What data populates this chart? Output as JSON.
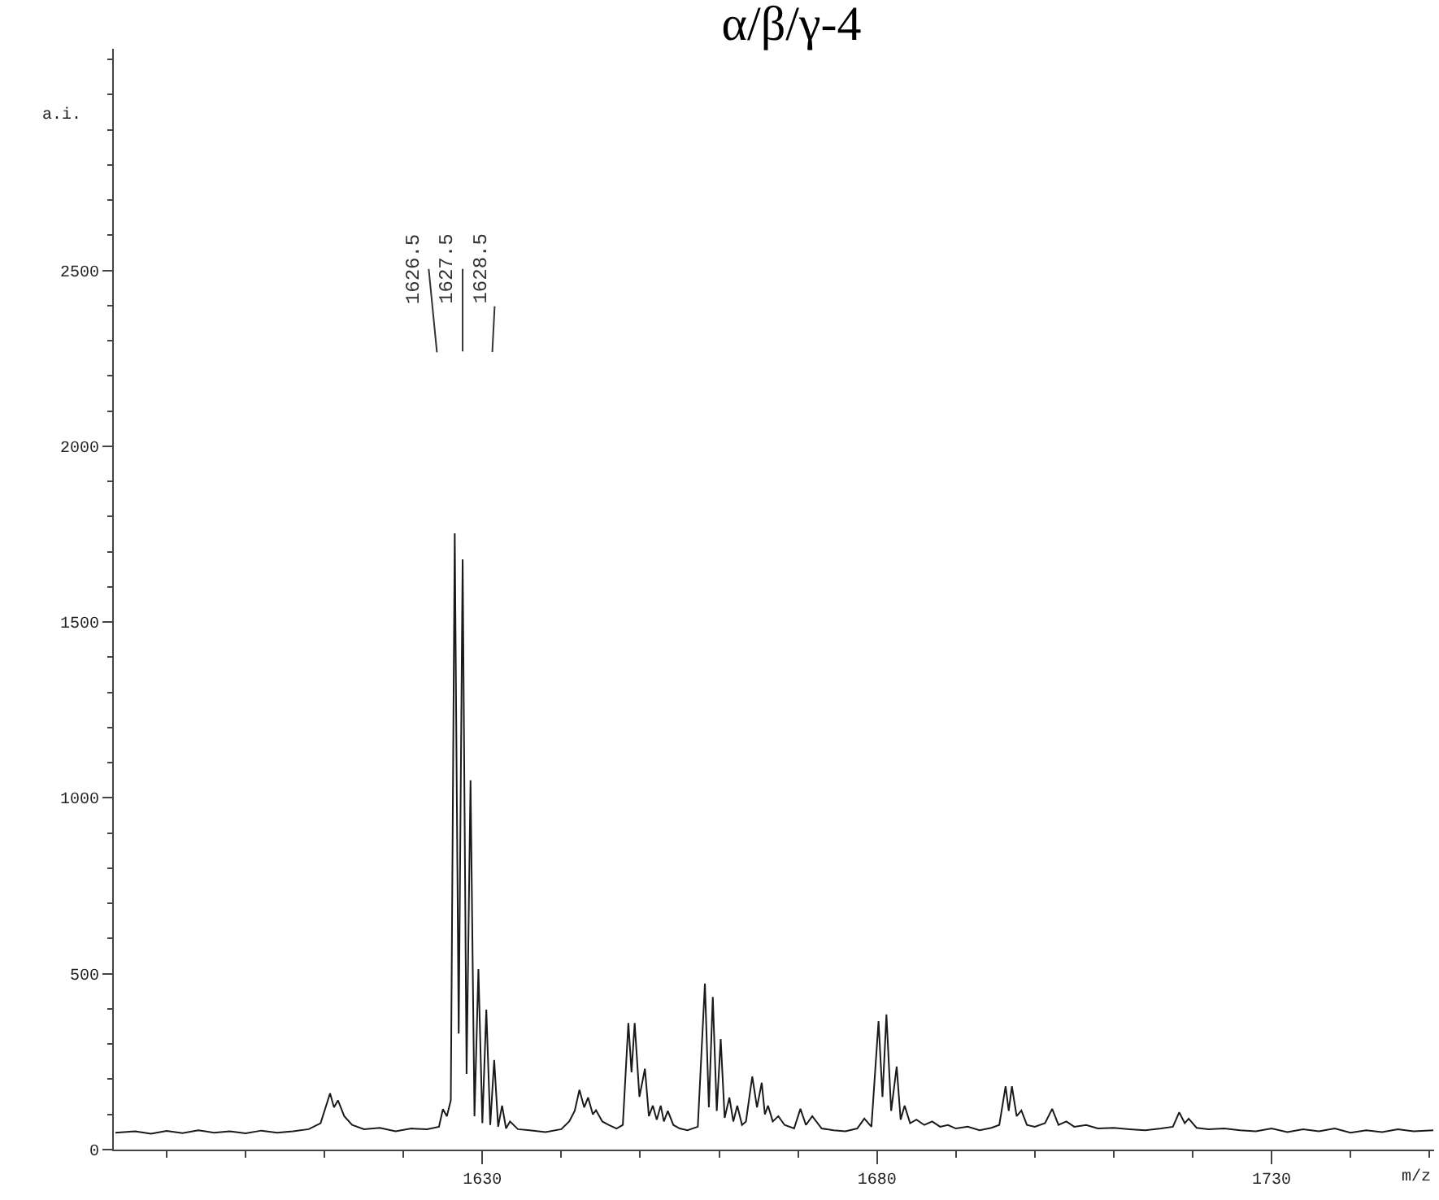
{
  "chart_data": {
    "type": "line",
    "title": "α/β/γ-4",
    "xlabel": "m/z",
    "ylabel": "a.i.",
    "x": [
      1583.5,
      1586,
      1588,
      1590,
      1592,
      1594,
      1596,
      1598,
      1600,
      1602,
      1604,
      1606,
      1608,
      1609.5,
      1610.7,
      1611.2,
      1611.7,
      1612.5,
      1613.5,
      1615,
      1617,
      1619,
      1621,
      1623,
      1624.5,
      1625,
      1625.5,
      1626,
      1626.5,
      1627,
      1627.5,
      1628,
      1628.5,
      1629,
      1629.5,
      1630,
      1630.5,
      1631,
      1631.5,
      1632,
      1632.5,
      1633,
      1633.5,
      1634.5,
      1636,
      1638,
      1640,
      1641,
      1641.7,
      1642.3,
      1642.9,
      1643.4,
      1644,
      1644.4,
      1645.2,
      1646,
      1647,
      1647.8,
      1648.5,
      1648.9,
      1649.3,
      1649.9,
      1650.6,
      1651.1,
      1651.6,
      1652.1,
      1652.6,
      1653,
      1653.5,
      1654.2,
      1655,
      1656,
      1657.3,
      1658.2,
      1658.7,
      1659.2,
      1659.7,
      1660.2,
      1660.7,
      1661.3,
      1661.8,
      1662.3,
      1662.9,
      1663.4,
      1664.2,
      1664.8,
      1665.4,
      1665.8,
      1666.2,
      1666.8,
      1667.5,
      1668.3,
      1669.5,
      1670.3,
      1671,
      1671.8,
      1673,
      1674.5,
      1676,
      1677.5,
      1678.4,
      1679.3,
      1680.2,
      1680.7,
      1681.2,
      1681.8,
      1682.5,
      1683,
      1683.5,
      1684.2,
      1685,
      1686,
      1687,
      1688,
      1689,
      1690,
      1691.5,
      1693,
      1694.5,
      1695.5,
      1696.3,
      1696.7,
      1697.1,
      1697.7,
      1698.3,
      1699,
      1700,
      1701.3,
      1702.2,
      1703,
      1704,
      1705,
      1706.5,
      1708,
      1710,
      1712,
      1714,
      1716,
      1717.5,
      1718.3,
      1719,
      1719.5,
      1720.5,
      1722,
      1724,
      1726,
      1728,
      1730,
      1732,
      1734,
      1736,
      1738,
      1740,
      1742,
      1744,
      1746,
      1748,
      1750.5
    ],
    "series": [
      {
        "color": "#1a1a1a",
        "values": [
          48,
          52,
          45,
          53,
          47,
          55,
          48,
          52,
          46,
          54,
          48,
          52,
          58,
          75,
          160,
          120,
          140,
          95,
          70,
          58,
          62,
          52,
          60,
          58,
          65,
          115,
          95,
          140,
          1752,
          330,
          1678,
          215,
          1050,
          95,
          513,
          75,
          398,
          70,
          255,
          65,
          125,
          60,
          80,
          58,
          55,
          50,
          58,
          80,
          110,
          170,
          120,
          148,
          100,
          112,
          80,
          70,
          60,
          70,
          360,
          220,
          360,
          150,
          230,
          95,
          125,
          85,
          125,
          80,
          110,
          70,
          60,
          55,
          65,
          472,
          120,
          434,
          110,
          314,
          90,
          148,
          80,
          125,
          70,
          80,
          208,
          120,
          190,
          100,
          125,
          80,
          95,
          70,
          60,
          116,
          70,
          95,
          60,
          55,
          52,
          60,
          88,
          65,
          365,
          150,
          384,
          110,
          236,
          85,
          125,
          75,
          85,
          70,
          80,
          65,
          70,
          60,
          65,
          55,
          62,
          70,
          180,
          110,
          180,
          95,
          111,
          70,
          65,
          75,
          116,
          70,
          80,
          65,
          70,
          60,
          62,
          58,
          55,
          60,
          65,
          106,
          75,
          88,
          62,
          58,
          60,
          55,
          52,
          60,
          50,
          58,
          52,
          60,
          48,
          55,
          50,
          58,
          52,
          55
        ]
      }
    ],
    "annotations": [
      {
        "text": "1626.5",
        "x": 1626.5,
        "y": 1752
      },
      {
        "text": "1627.5",
        "x": 1627.5,
        "y": 1678
      },
      {
        "text": "1628.5",
        "x": 1628.5,
        "y": 1050
      }
    ],
    "xlim": [
      1583.3,
      1750.6
    ],
    "xticks": [
      {
        "value": 1590,
        "label": null
      },
      {
        "value": 1600,
        "label": null
      },
      {
        "value": 1610,
        "label": null
      },
      {
        "value": 1620,
        "label": null
      },
      1630,
      {
        "value": 1640,
        "label": null
      },
      {
        "value": 1650,
        "label": null
      },
      {
        "value": 1660,
        "label": null
      },
      {
        "value": 1670,
        "label": null
      },
      1680,
      {
        "value": 1690,
        "label": null
      },
      {
        "value": 1700,
        "label": null
      },
      {
        "value": 1710,
        "label": null
      },
      {
        "value": 1720,
        "label": null
      },
      1730,
      {
        "value": 1740,
        "label": null
      },
      {
        "value": 1750,
        "label": null
      }
    ],
    "ylim": [
      0,
      3130
    ],
    "yticks": [
      0,
      {
        "value": 100,
        "label": null
      },
      {
        "value": 200,
        "label": null
      },
      {
        "value": 300,
        "label": null
      },
      {
        "value": 400,
        "label": null
      },
      500,
      {
        "value": 600,
        "label": null
      },
      {
        "value": 700,
        "label": null
      },
      {
        "value": 800,
        "label": null
      },
      {
        "value": 900,
        "label": null
      },
      1000,
      {
        "value": 1100,
        "label": null
      },
      {
        "value": 1200,
        "label": null
      },
      {
        "value": 1300,
        "label": null
      },
      {
        "value": 1400,
        "label": null
      },
      1500,
      {
        "value": 1600,
        "label": null
      },
      {
        "value": 1700,
        "label": null
      },
      {
        "value": 1800,
        "label": null
      },
      {
        "value": 1900,
        "label": null
      },
      2000,
      {
        "value": 2100,
        "label": null
      },
      {
        "value": 2200,
        "label": null
      },
      {
        "value": 2300,
        "label": null
      },
      {
        "value": 2400,
        "label": null
      },
      2500,
      {
        "value": 2600,
        "label": null
      },
      {
        "value": 2700,
        "label": null
      },
      {
        "value": 2800,
        "label": null
      },
      {
        "value": 2900,
        "label": null
      },
      {
        "value": 3000,
        "label": null
      },
      {
        "value": 3100,
        "label": null
      }
    ],
    "grid": false,
    "legend": false,
    "marker": "none",
    "line_style": "solid"
  }
}
